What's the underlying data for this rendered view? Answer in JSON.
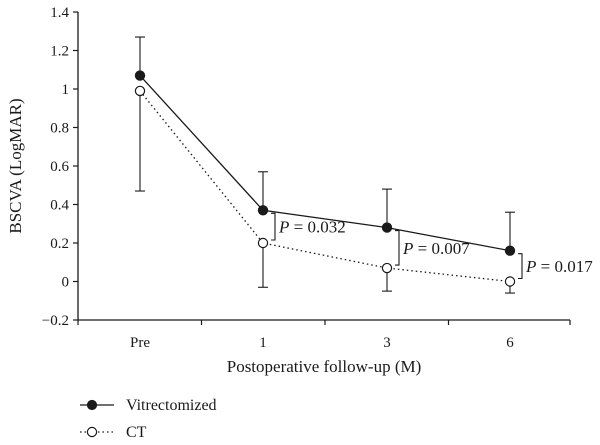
{
  "chart_data": {
    "type": "line",
    "xlabel": "Postoperative follow-up (M)",
    "ylabel": "BSCVA (LogMAR)",
    "ylim": [
      -0.2,
      1.4
    ],
    "yticks": [
      "−0.2",
      "0",
      "0.2",
      "0.4",
      "0.6",
      "0.8",
      "1",
      "1.2",
      "1.4"
    ],
    "ytick_values": [
      -0.2,
      0,
      0.2,
      0.4,
      0.6,
      0.8,
      1.0,
      1.2,
      1.4
    ],
    "categories": [
      "Pre",
      "1",
      "3",
      "6"
    ],
    "grid": false,
    "legend_position": "bottom-left",
    "series": [
      {
        "name": "Vitrectomized",
        "marker": "filled-circle",
        "line": "solid",
        "values": [
          1.07,
          0.37,
          0.28,
          0.16
        ],
        "error_upper": [
          1.27,
          0.57,
          0.48,
          0.36
        ],
        "error_direction": "up"
      },
      {
        "name": "CT",
        "marker": "open-circle",
        "line": "dotted",
        "values": [
          0.99,
          0.2,
          0.07,
          0.0
        ],
        "error_lower": [
          0.47,
          -0.03,
          -0.05,
          -0.06
        ],
        "error_direction": "down"
      }
    ],
    "annotations": [
      {
        "label": "P",
        "value": " = 0.032",
        "category": "1"
      },
      {
        "label": "P",
        "value": " = 0.007",
        "category": "3"
      },
      {
        "label": "P",
        "value": " = 0.017",
        "category": "6"
      }
    ]
  }
}
